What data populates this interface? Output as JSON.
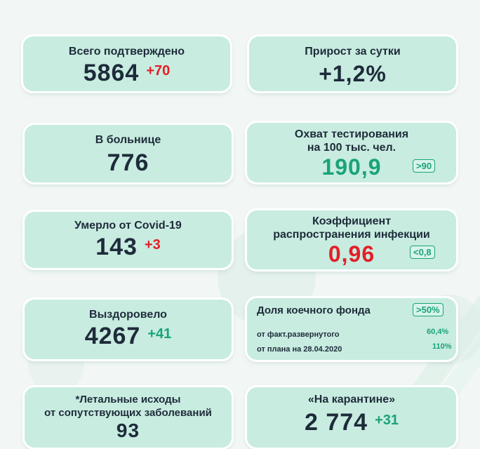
{
  "cards": {
    "total": {
      "label": "Всего подтверждено",
      "value": "5864",
      "delta": "+70"
    },
    "growth": {
      "label": "Прирост за сутки",
      "value": "+1,2%"
    },
    "hospital": {
      "label": "В больнице",
      "value": "776"
    },
    "testing": {
      "label_line1": "Охват тестирования",
      "label_line2": "на 100 тыс. чел.",
      "value": "190,9",
      "badge": ">90"
    },
    "died": {
      "label": "Умерло от Covid-19",
      "value": "143",
      "delta": "+3"
    },
    "coef": {
      "label_line1": "Коэффициент",
      "label_line2": "распространения инфекции",
      "value": "0,96",
      "badge": "<0,8"
    },
    "recovered": {
      "label": "Выздоровело",
      "value": "4267",
      "delta": "+41"
    },
    "beds": {
      "label": "Доля коечного фонда",
      "badge": ">50%",
      "rows": [
        {
          "name": "от факт.развернутого",
          "value": "60,4%"
        },
        {
          "name": "от плана на 28.04.2020",
          "value": "110%"
        }
      ]
    },
    "lethal": {
      "label_line1": "*Летальные исходы",
      "label_line2": "от сопутствующих заболеваний",
      "value": "93"
    },
    "quarantine": {
      "label": "«На карантине»",
      "value": "2 774",
      "delta": "+31"
    }
  },
  "colors": {
    "card_bg": "#c8ece0",
    "accent_green": "#1aa37a",
    "accent_red": "#e41e26",
    "text_dark": "#1e2b3a"
  }
}
